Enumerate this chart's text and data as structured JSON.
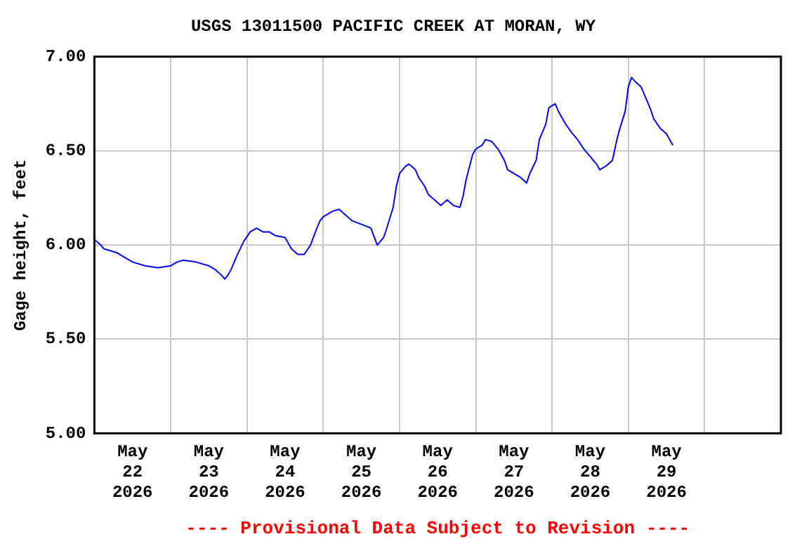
{
  "chart_data": {
    "type": "line",
    "title": "USGS 13011500 PACIFIC CREEK AT MORAN, WY",
    "ylabel": "Gage height, feet",
    "annotations": [
      "---- Provisional Data Subject to Revision ----"
    ],
    "x": [
      "2026-05-22T00:00",
      "2026-05-22T02:00",
      "2026-05-22T03:00",
      "2026-05-22T07:00",
      "2026-05-22T09:00",
      "2026-05-22T12:00",
      "2026-05-22T16:00",
      "2026-05-22T20:00",
      "2026-05-23T00:00",
      "2026-05-23T02:00",
      "2026-05-23T04:00",
      "2026-05-23T08:00",
      "2026-05-23T12:00",
      "2026-05-23T14:00",
      "2026-05-23T16:00",
      "2026-05-23T17:00",
      "2026-05-23T18:00",
      "2026-05-23T19:00",
      "2026-05-23T21:00",
      "2026-05-23T23:00",
      "2026-05-24T01:00",
      "2026-05-24T03:00",
      "2026-05-24T05:00",
      "2026-05-24T07:00",
      "2026-05-24T09:00",
      "2026-05-24T12:00",
      "2026-05-24T14:00",
      "2026-05-24T16:00",
      "2026-05-24T18:00",
      "2026-05-24T20:00",
      "2026-05-24T22:00",
      "2026-05-24T23:00",
      "2026-05-25T00:00",
      "2026-05-25T03:00",
      "2026-05-25T05:00",
      "2026-05-25T07:00",
      "2026-05-25T09:00",
      "2026-05-25T12:00",
      "2026-05-25T15:00",
      "2026-05-25T17:00",
      "2026-05-25T19:00",
      "2026-05-25T20:00",
      "2026-05-25T22:00",
      "2026-05-25T23:00",
      "2026-05-26T00:00",
      "2026-05-26T02:00",
      "2026-05-26T03:00",
      "2026-05-26T05:00",
      "2026-05-26T06:00",
      "2026-05-26T08:00",
      "2026-05-26T09:00",
      "2026-05-26T11:00",
      "2026-05-26T13:00",
      "2026-05-26T15:00",
      "2026-05-26T17:00",
      "2026-05-26T19:00",
      "2026-05-26T20:00",
      "2026-05-26T21:00",
      "2026-05-26T23:00",
      "2026-05-27T00:00",
      "2026-05-27T02:00",
      "2026-05-27T03:00",
      "2026-05-27T05:00",
      "2026-05-27T07:00",
      "2026-05-27T09:00",
      "2026-05-27T10:00",
      "2026-05-27T12:00",
      "2026-05-27T14:00",
      "2026-05-27T16:00",
      "2026-05-27T17:00",
      "2026-05-27T19:00",
      "2026-05-27T20:00",
      "2026-05-27T22:00",
      "2026-05-27T23:00",
      "2026-05-28T01:00",
      "2026-05-28T02:00",
      "2026-05-28T04:00",
      "2026-05-28T06:00",
      "2026-05-28T08:00",
      "2026-05-28T10:00",
      "2026-05-28T12:00",
      "2026-05-28T14:00",
      "2026-05-28T15:00",
      "2026-05-28T17:00",
      "2026-05-28T19:00",
      "2026-05-28T20:00",
      "2026-05-28T21:00",
      "2026-05-28T23:00",
      "2026-05-29T00:00",
      "2026-05-29T01:00",
      "2026-05-29T02:00",
      "2026-05-29T04:00",
      "2026-05-29T05:00",
      "2026-05-29T07:00",
      "2026-05-29T08:00",
      "2026-05-29T10:00",
      "2026-05-29T12:00",
      "2026-05-29T13:00",
      "2026-05-29T14:00"
    ],
    "series": [
      {
        "color": "#0000ff",
        "values": [
          6.03,
          6.0,
          5.98,
          5.96,
          5.94,
          5.91,
          5.89,
          5.88,
          5.89,
          5.91,
          5.92,
          5.91,
          5.89,
          5.87,
          5.84,
          5.82,
          5.84,
          5.87,
          5.95,
          6.02,
          6.07,
          6.09,
          6.07,
          6.07,
          6.05,
          6.04,
          5.98,
          5.95,
          5.95,
          6.0,
          6.09,
          6.13,
          6.15,
          6.18,
          6.19,
          6.16,
          6.13,
          6.11,
          6.09,
          6.0,
          6.04,
          6.09,
          6.2,
          6.31,
          6.38,
          6.42,
          6.43,
          6.4,
          6.36,
          6.31,
          6.27,
          6.24,
          6.21,
          6.24,
          6.21,
          6.2,
          6.26,
          6.35,
          6.48,
          6.51,
          6.53,
          6.56,
          6.55,
          6.51,
          6.45,
          6.4,
          6.38,
          6.36,
          6.33,
          6.38,
          6.45,
          6.56,
          6.64,
          6.73,
          6.75,
          6.71,
          6.65,
          6.6,
          6.56,
          6.51,
          6.47,
          6.43,
          6.4,
          6.42,
          6.45,
          6.53,
          6.6,
          6.71,
          6.84,
          6.89,
          6.87,
          6.84,
          6.8,
          6.72,
          6.67,
          6.62,
          6.59,
          6.56,
          6.53
        ]
      }
    ],
    "xlim": [
      "2026-05-22T00:00",
      "2026-05-31T00:00"
    ],
    "xticks": [
      {
        "value": "2026-05-22T12:00",
        "label": "May 22 2026"
      },
      {
        "value": "2026-05-23T00:00",
        "label": null
      },
      {
        "value": "2026-05-23T12:00",
        "label": "May 23 2026"
      },
      {
        "value": "2026-05-24T00:00",
        "label": null
      },
      {
        "value": "2026-05-24T12:00",
        "label": "May 24 2026"
      },
      {
        "value": "2026-05-25T00:00",
        "label": null
      },
      {
        "value": "2026-05-25T12:00",
        "label": "May 25 2026"
      },
      {
        "value": "2026-05-26T00:00",
        "label": null
      },
      {
        "value": "2026-05-26T12:00",
        "label": "May 26 2026"
      },
      {
        "value": "2026-05-27T00:00",
        "label": null
      },
      {
        "value": "2026-05-27T12:00",
        "label": "May 27 2026"
      },
      {
        "value": "2026-05-28T00:00",
        "label": null
      },
      {
        "value": "2026-05-28T12:00",
        "label": "May 28 2026"
      },
      {
        "value": "2026-05-29T00:00",
        "label": null
      },
      {
        "value": "2026-05-29T12:00",
        "label": "May 29 2026"
      },
      {
        "value": "2026-05-30T00:00",
        "label": null
      }
    ],
    "ylim": [
      5,
      7
    ],
    "yticks": [
      {
        "value": 5,
        "label": "5.00"
      },
      {
        "value": 5.5,
        "label": "5.50"
      },
      {
        "value": 6,
        "label": "6.00"
      },
      {
        "value": 6.5,
        "label": "6.50"
      },
      {
        "value": 7,
        "label": "7.00"
      }
    ],
    "grid": true,
    "legend": false,
    "marker": "none",
    "line_style": "solid"
  }
}
